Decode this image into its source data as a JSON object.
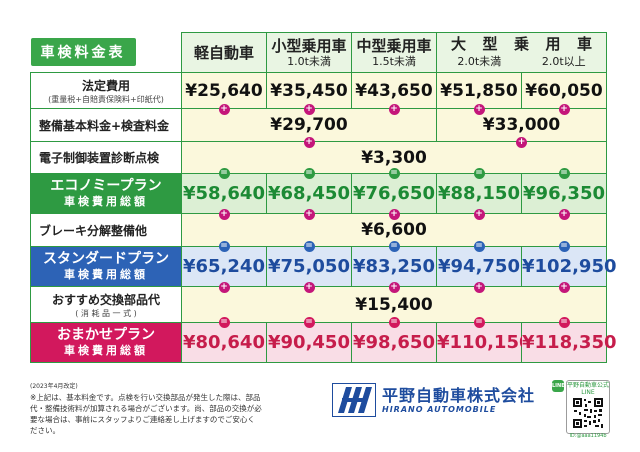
{
  "title": "車検料金表",
  "columns": {
    "kei": {
      "label": "軽自動車"
    },
    "small": {
      "label": "小型乗用車",
      "sub": "1.0t未満"
    },
    "mid": {
      "label": "中型乗用車",
      "sub": "1.5t未満"
    },
    "large": {
      "label_chars": [
        "大",
        "型",
        "乗",
        "用",
        "車"
      ],
      "sub1": "2.0t未満",
      "sub2": "2.0t以上"
    }
  },
  "rows": {
    "legal": {
      "label": "法定費用",
      "sub": "(重量税+自賠責保険料+印紙代)",
      "values": [
        "¥25,640",
        "¥35,450",
        "¥43,650",
        "¥51,850",
        "¥60,050"
      ]
    },
    "basic": {
      "label": "整備基本料金+検査料金",
      "value_small": "¥29,700",
      "value_large": "¥33,000"
    },
    "electronic": {
      "label": "電子制御装置診断点検",
      "value": "¥3,300"
    },
    "economy": {
      "label": "エコノミープラン",
      "sub": "車検費用総額",
      "values": [
        "¥58,640",
        "¥68,450",
        "¥76,650",
        "¥88,150",
        "¥96,350"
      ]
    },
    "brake": {
      "label": "ブレーキ分解整備他",
      "value": "¥6,600"
    },
    "standard": {
      "label": "スタンダードプラン",
      "sub": "車検費用総額",
      "values": [
        "¥65,240",
        "¥75,050",
        "¥83,250",
        "¥94,750",
        "¥102,950"
      ]
    },
    "parts": {
      "label": "おすすめ交換部品代",
      "sub": "( 消 耗 品 一 式 )",
      "value": "¥15,400"
    },
    "omakase": {
      "label": "おまかせプラン",
      "sub": "車検費用総額",
      "values": [
        "¥80,640",
        "¥90,450",
        "¥98,650",
        "¥110,150",
        "¥118,350"
      ]
    }
  },
  "operators": {
    "plus": "+",
    "equals": "="
  },
  "footer": {
    "date": "(2023年4月改定)",
    "note": "※上記は、基本料金です。点検を行い交換部品が発生した際は、部品代・整備技術料が加算される場合がございます。尚、部品の交換が必要な場合は、事前にスタッフよりご連絡差し上げますのでご安心ください。",
    "company_name": "平野自動車株式会社",
    "company_en": "HIRANO AUTOMOBILE",
    "line_head": "平野自動車公式LINE",
    "line_icon": "LINE",
    "line_id": "ID:@aaa1194b"
  },
  "icons": {
    "logo": "hirano-logo-mark",
    "qr": "qr-code-icon",
    "line": "line-icon"
  },
  "colors": {
    "green": "#2e9a42",
    "blue": "#2d63b6",
    "pink": "#d2185d",
    "cream": "#fbf8dc"
  }
}
